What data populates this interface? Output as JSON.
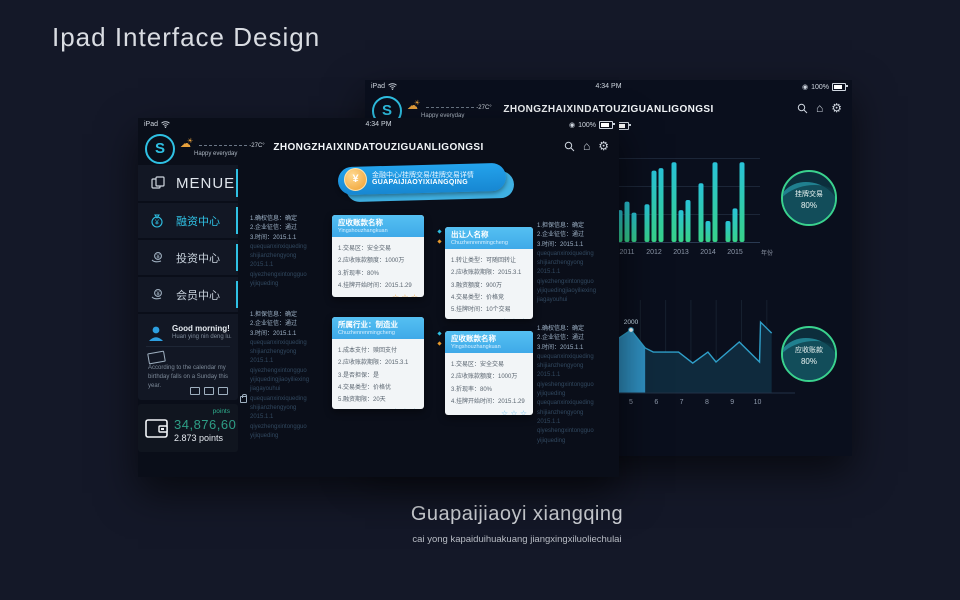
{
  "page": {
    "title": "Ipad Interface Design",
    "caption_title": "Guapaijiaoyi xiangqing",
    "caption_subtitle": "cai yong kapaiduihuakuang jiangxingxiluoliechulai"
  },
  "icons": {
    "star": "☆",
    "cloud": "☁",
    "sun": "☀",
    "home": "⌂",
    "gear": "⚙",
    "yuan": "¥",
    "circle_dot": "◉"
  },
  "colors": {
    "accent_cyan": "#2fc1e4",
    "banner_blue": "#1f9be8",
    "card_header_blue": "#45b4ea",
    "star_orange": "#f0a63c",
    "star_blue": "#6fc0ec",
    "gauge_green": "#3ad28e",
    "points_teal": "#2e9e86",
    "bar_top": "#29c3d8",
    "bar_bottom": "#37d289",
    "coin_orange": "#ef9f2e"
  },
  "status_bar": {
    "device": "iPad",
    "time": "4:34 PM",
    "battery": "100%"
  },
  "header": {
    "title": "ZHONGZHAIXINDATOUZIGUANLIGONGSI",
    "weather_temp": "-27C°",
    "weather_text": "Happy everyday",
    "center_battery": "100%"
  },
  "sidebar": {
    "menu_label": "MENUE",
    "items": [
      {
        "label": "融资中心",
        "active": true
      },
      {
        "label": "投资中心",
        "active": false
      },
      {
        "label": "会员中心",
        "active": false
      }
    ],
    "greeting": {
      "title": "Good morning!",
      "subtitle": "Huan ying nin deng lu.",
      "note": "According to the calendar my birthday falls on a Sunday this year."
    },
    "points": {
      "label": "points",
      "value": "34,876,60",
      "sub": "2.873 points"
    }
  },
  "banner": {
    "line1": "金融中心/挂牌交易/挂牌交易详情",
    "line2": "GUAPAIJIAOYIXIANGQING"
  },
  "cards": [
    {
      "title": "应收账款名称",
      "subtitle": "Yingshouzhangkuan",
      "star_color": "orange",
      "lines": [
        "1.交易区：安全交易",
        "2.应收账款额度：1000万",
        "3.折现率：80%",
        "4.挂牌开始时间：2015.1.29"
      ]
    },
    {
      "title": "出让人名称",
      "subtitle": "Chuzhenrenmingcheng",
      "star_color": "blue",
      "lines": [
        "1.转让类型：可随回转让",
        "2.应收账款期限：2015.3.1",
        "3.融资额度：900万",
        "4.交易类型：价格竞",
        "5.挂牌时间：10个交易"
      ]
    },
    {
      "title": "所属行业：制造业",
      "subtitle": "Chuzhenrenmingcheng",
      "star_color": "blue",
      "lines": [
        "1.成本支付：赎回支付",
        "2.应收账款期限：2015.3.1",
        "3.是否担保：是",
        "4.交易类型：价格优",
        "5.融资期限：20天"
      ]
    },
    {
      "title": "应收账款名称",
      "subtitle": "Yingshouzhangkuan",
      "star_color": "blue",
      "lines": [
        "1.交易区：安全交易",
        "2.应收账款额度：1000万",
        "3.折现率：80%",
        "4.挂牌开始时间：2015.1.29"
      ]
    }
  ],
  "notes": [
    {
      "zh": [
        "1.确权信息：确定",
        "2.企业征信：通过",
        "3.时间：2015.1.1"
      ],
      "py": [
        "quequanxinxiqueding",
        "shijianzhengyong",
        "2015.1.1",
        "qiyezhengxintongguo",
        "yijiqueding"
      ]
    },
    {
      "zh": [
        "1.担保信息：确定",
        "2.企业征信：通过",
        "3.时间：2015.1.1"
      ],
      "py": [
        "quequanxinxiqueding",
        "shijianzhengyong",
        "2015.1.1",
        "qiyezhengxintongguo",
        "yijiquedingjiaoyiliexing",
        "jiagayouhui",
        "quequanxinxiqueding",
        "shijianzhengyong",
        "2015.1.1",
        "qiyezhengxintongguo",
        "yijiqueding"
      ]
    },
    {
      "zh": [
        "1.担保信息：确定",
        "2.企业征信：通过",
        "3.时间：2015.1.1"
      ],
      "py": [
        "quequanxinxiqueding",
        "shijianzhengyong",
        "2015.1.1",
        "qiyezhengxintongguo",
        "yijiquedingjiaoyiliexing",
        "jiagayouhui"
      ]
    },
    {
      "zh": [
        "1.确权信息：确定",
        "2.企业征信：通过",
        "3.时间：2015.1.1"
      ],
      "py": [
        "quequanxinxiqueding",
        "shijianzhengyong",
        "2015.1.1",
        "qiyeshengxintongguo",
        "yijiqueding",
        "quequanxinxiqueding",
        "shijianzhengyong",
        "2015.1.1",
        "qiyeshengxintongguo",
        "yijiqueding"
      ]
    }
  ],
  "chart_data": [
    {
      "type": "bar",
      "categories": [
        "2011",
        "2012",
        "2013",
        "2014",
        "2015"
      ],
      "series": [
        {
          "name": "series-1",
          "values": [
            38,
            45,
            95,
            70,
            25
          ]
        },
        {
          "name": "series-2",
          "values": [
            48,
            85,
            38,
            25,
            40
          ]
        },
        {
          "name": "series-3",
          "values": [
            35,
            88,
            50,
            95,
            95
          ]
        }
      ],
      "xlabel": "年份",
      "ylabel": "",
      "ylim": [
        0,
        100
      ],
      "grid": true,
      "legend": false
    },
    {
      "type": "area",
      "x": [
        4.24,
        5,
        5.56,
        5.88,
        6.88,
        7.44,
        8.04,
        8.36,
        9.28,
        10.08,
        10.12,
        10.56
      ],
      "values": [
        1590,
        2000,
        1430,
        1300,
        1300,
        950,
        1300,
        985,
        1620,
        985,
        2250,
        1900
      ],
      "xticks": [
        "5",
        "6",
        "7",
        "8",
        "9",
        "10"
      ],
      "annotation": {
        "x": 5,
        "value": 2000,
        "label": "2000"
      },
      "highlight_range": [
        4.24,
        5.56
      ],
      "xlabel": "",
      "ylabel": "",
      "grid": true
    },
    {
      "type": "gauge",
      "items": [
        {
          "label": "挂牌交易",
          "value": 80,
          "display": "80%"
        },
        {
          "label": "应收账款",
          "value": 80,
          "display": "80%"
        }
      ]
    }
  ]
}
